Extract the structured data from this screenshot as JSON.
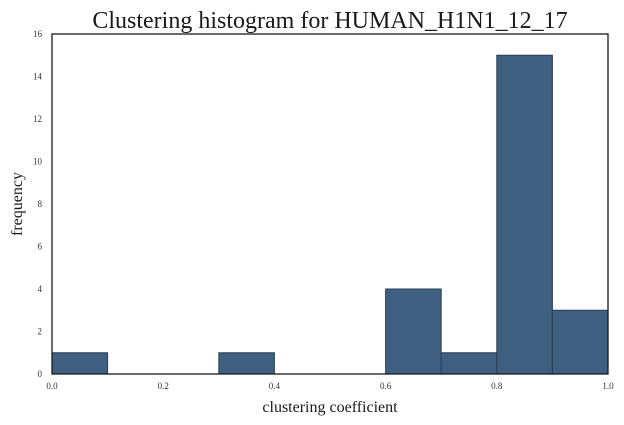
{
  "chart_data": {
    "type": "bar",
    "title": "Clustering histogram for HUMAN_H1N1_12_17",
    "xlabel": "clustering coefficient",
    "ylabel": "frequency",
    "xlim": [
      0,
      1
    ],
    "ylim": [
      0,
      16
    ],
    "xticks": [
      "0.0",
      "0.2",
      "0.4",
      "0.6",
      "0.8",
      "1.0"
    ],
    "yticks": [
      "0",
      "2",
      "4",
      "6",
      "8",
      "10",
      "12",
      "14",
      "16"
    ],
    "bins": [
      {
        "start": 0.0,
        "end": 0.1,
        "value": 1
      },
      {
        "start": 0.1,
        "end": 0.2,
        "value": 0
      },
      {
        "start": 0.2,
        "end": 0.3,
        "value": 0
      },
      {
        "start": 0.3,
        "end": 0.4,
        "value": 1
      },
      {
        "start": 0.4,
        "end": 0.5,
        "value": 0
      },
      {
        "start": 0.5,
        "end": 0.6,
        "value": 0
      },
      {
        "start": 0.6,
        "end": 0.7,
        "value": 4
      },
      {
        "start": 0.7,
        "end": 0.8,
        "value": 1
      },
      {
        "start": 0.8,
        "end": 0.9,
        "value": 15
      },
      {
        "start": 0.9,
        "end": 1.0,
        "value": 3
      }
    ],
    "bar_color": "#3f5f80",
    "bar_edge_color": "#2b3f55",
    "grid": false,
    "legend": "none"
  }
}
